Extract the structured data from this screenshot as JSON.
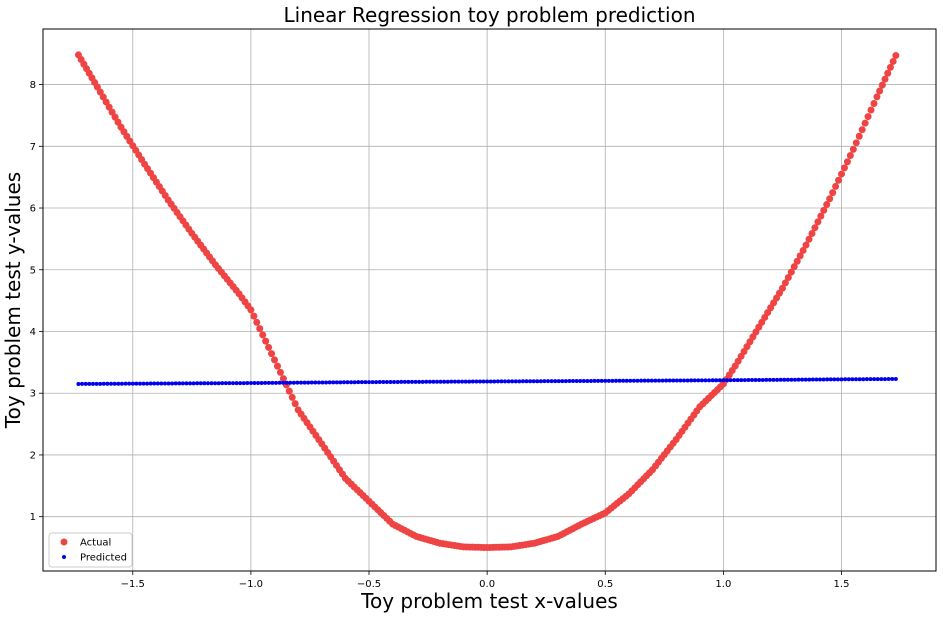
{
  "chart_data": {
    "type": "scatter",
    "title": "Linear Regression toy problem prediction",
    "xlabel": "Toy problem test x-values",
    "ylabel": "Toy problem test y-values",
    "xlim": [
      -1.88,
      1.9
    ],
    "ylim": [
      0.12,
      8.9
    ],
    "xticks": [
      -1.5,
      -1.0,
      -0.5,
      0.0,
      0.5,
      1.0,
      1.5
    ],
    "xtick_labels": [
      "−1.5",
      "−1.0",
      "−0.5",
      "0.0",
      "0.5",
      "1.0",
      "1.5"
    ],
    "yticks": [
      1,
      2,
      3,
      4,
      5,
      6,
      7,
      8
    ],
    "ytick_labels": [
      "1",
      "2",
      "3",
      "4",
      "5",
      "6",
      "7",
      "8"
    ],
    "grid": true,
    "legend_position": "lower-left",
    "series": [
      {
        "name": "Actual",
        "color": "#ef4444",
        "marker": "circle-large",
        "x": [
          -1.73,
          -1.65,
          -1.55,
          -1.45,
          -1.35,
          -1.25,
          -1.15,
          -1.05,
          -1.0,
          -0.9,
          -0.8,
          -0.7,
          -0.6,
          -0.5,
          -0.4,
          -0.3,
          -0.2,
          -0.1,
          0.0,
          0.1,
          0.2,
          0.3,
          0.4,
          0.5,
          0.6,
          0.7,
          0.8,
          0.9,
          1.0,
          1.05,
          1.15,
          1.25,
          1.35,
          1.45,
          1.55,
          1.65,
          1.73
        ],
        "y": [
          8.48,
          7.96,
          7.31,
          6.71,
          6.13,
          5.59,
          5.08,
          4.61,
          4.35,
          3.54,
          2.73,
          2.18,
          1.62,
          1.25,
          0.88,
          0.68,
          0.57,
          0.51,
          0.5,
          0.51,
          0.57,
          0.68,
          0.88,
          1.06,
          1.37,
          1.76,
          2.25,
          2.78,
          3.15,
          3.44,
          4.07,
          4.7,
          5.4,
          6.15,
          6.95,
          7.8,
          8.47
        ]
      },
      {
        "name": "Predicted",
        "color": "#0000ee",
        "marker": "circle-small",
        "x": [
          -1.73,
          -1.5,
          -1.0,
          -0.5,
          0.0,
          0.5,
          1.0,
          1.5,
          1.73
        ],
        "y": [
          3.15,
          3.155,
          3.165,
          3.18,
          3.19,
          3.2,
          3.21,
          3.225,
          3.23
        ]
      }
    ]
  }
}
